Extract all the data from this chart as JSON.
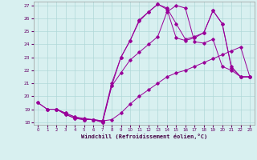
{
  "bg_color": "#d8f0f0",
  "line_color": "#990099",
  "xlim": [
    -0.5,
    23.5
  ],
  "ylim": [
    17.8,
    27.3
  ],
  "yticks": [
    18,
    19,
    20,
    21,
    22,
    23,
    24,
    25,
    26,
    27
  ],
  "xticks": [
    0,
    1,
    2,
    3,
    4,
    5,
    6,
    7,
    8,
    9,
    10,
    11,
    12,
    13,
    14,
    15,
    16,
    17,
    18,
    19,
    20,
    21,
    22,
    23
  ],
  "xlabel": "Windchill (Refroidissement éolien,°C)",
  "lines": [
    {
      "x": [
        0,
        1,
        2,
        3,
        4,
        5,
        6,
        7,
        8,
        9,
        10,
        11,
        12,
        13,
        14,
        15,
        16,
        17,
        18,
        19,
        20,
        21,
        22,
        23
      ],
      "y": [
        19.5,
        19.0,
        19.0,
        18.6,
        18.3,
        18.2,
        18.2,
        18.1,
        18.2,
        18.7,
        19.4,
        20.0,
        20.5,
        21.0,
        21.5,
        21.8,
        22.0,
        22.3,
        22.6,
        22.9,
        23.2,
        23.5,
        23.8,
        21.5
      ]
    },
    {
      "x": [
        2,
        3,
        4,
        5,
        6,
        7,
        8,
        9,
        10,
        11,
        12,
        13,
        14,
        15,
        16,
        17,
        18,
        19,
        20,
        21,
        22,
        23
      ],
      "y": [
        19.0,
        18.6,
        18.3,
        18.2,
        18.2,
        18.0,
        20.8,
        21.8,
        22.8,
        23.4,
        24.0,
        24.6,
        26.5,
        27.0,
        26.8,
        24.2,
        24.1,
        24.4,
        22.3,
        22.0,
        21.5,
        21.5
      ]
    },
    {
      "x": [
        0,
        1,
        2,
        3,
        4,
        5,
        6,
        7,
        8,
        9,
        10,
        11,
        12,
        13,
        14,
        15,
        16,
        17,
        18,
        19,
        20,
        21,
        22,
        23
      ],
      "y": [
        19.5,
        19.0,
        19.0,
        18.7,
        18.4,
        18.2,
        18.2,
        18.0,
        20.8,
        23.0,
        24.3,
        25.8,
        26.5,
        27.1,
        26.7,
        24.5,
        24.3,
        24.5,
        24.9,
        26.6,
        25.6,
        22.2,
        21.5,
        21.5
      ]
    },
    {
      "x": [
        1,
        2,
        3,
        4,
        5,
        6,
        7,
        8,
        9,
        10,
        11,
        12,
        13,
        14,
        15,
        16,
        17,
        18,
        19,
        20,
        21,
        22,
        23
      ],
      "y": [
        19.0,
        19.0,
        18.7,
        18.4,
        18.3,
        18.2,
        18.1,
        21.0,
        23.0,
        24.3,
        25.9,
        26.5,
        27.1,
        26.8,
        25.6,
        24.4,
        24.6,
        24.9,
        26.6,
        25.6,
        22.3,
        21.5,
        21.5
      ]
    }
  ]
}
